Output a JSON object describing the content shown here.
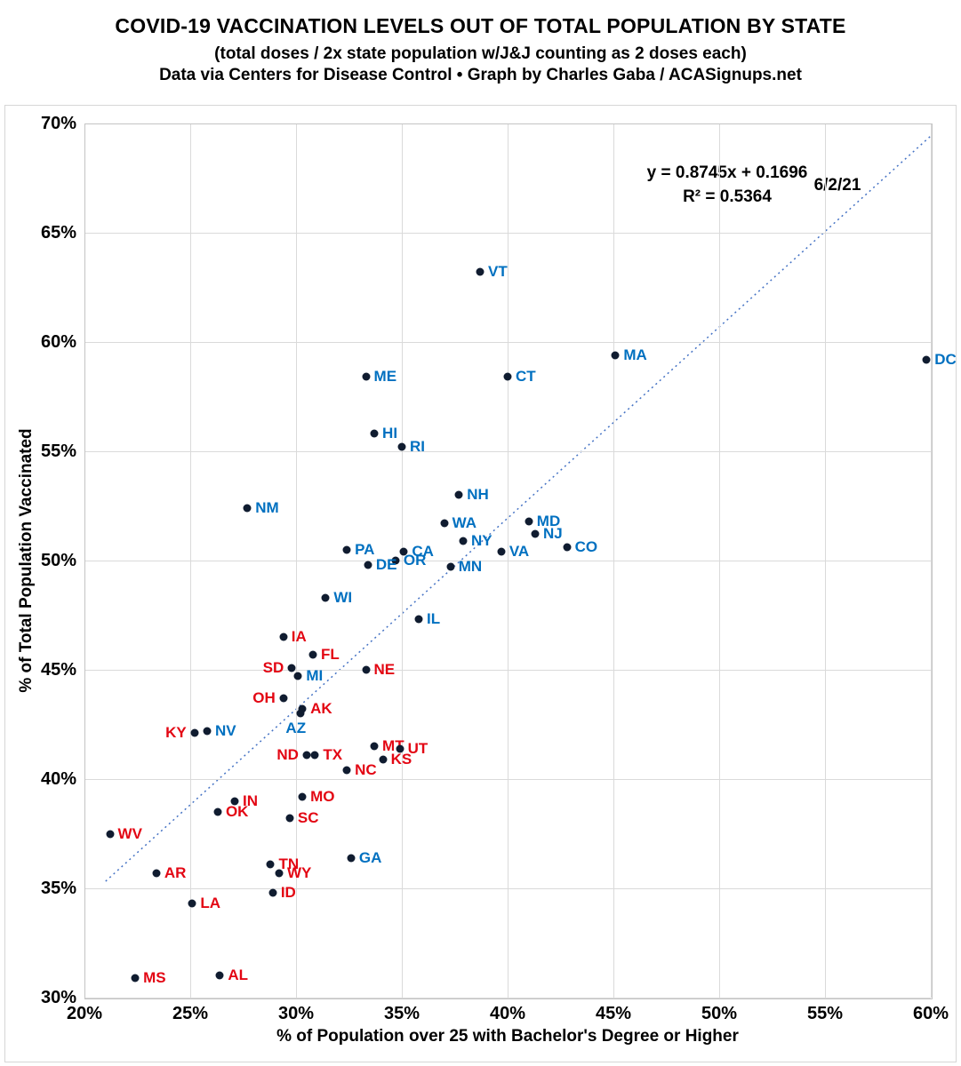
{
  "header": {
    "title": "COVID-19 VACCINATION LEVELS OUT OF TOTAL POPULATION BY STATE",
    "subtitle": "(total doses / 2x state population w/J&J counting as 2 doses each)",
    "attribution": "Data via Centers for Disease Control • Graph by Charles Gaba / ACASignups.net"
  },
  "chart_data": {
    "type": "scatter",
    "xlabel": "% of Population over 25 with Bachelor's Degree or Higher",
    "ylabel": "% of Total Population Vaccinated",
    "xlim": [
      20,
      60
    ],
    "ylim": [
      30,
      70
    ],
    "x_ticks": [
      20,
      25,
      30,
      35,
      40,
      45,
      50,
      55,
      60
    ],
    "x_tick_labels": [
      "20%",
      "25%",
      "30%",
      "35%",
      "40%",
      "45%",
      "50%",
      "55%",
      "60%"
    ],
    "y_ticks": [
      30,
      35,
      40,
      45,
      50,
      55,
      60,
      65,
      70
    ],
    "y_tick_labels": [
      "30%",
      "35%",
      "40%",
      "45%",
      "50%",
      "55%",
      "60%",
      "65%",
      "70%"
    ],
    "grid": true,
    "legend": "none",
    "annotation": {
      "equation": "y = 0.8745x + 0.1696",
      "r_squared": "R² = 0.5364",
      "date": "6/2/21"
    },
    "trendline": {
      "slope": 0.8745,
      "intercept": 0.1696,
      "x_start": 21,
      "x_end": 60,
      "style": "dotted"
    },
    "colors": {
      "dot": "#101c30",
      "blue_label": "#0070c0",
      "red_label": "#e30613",
      "trend": "#4472c4"
    },
    "points": [
      {
        "state": "VT",
        "x": 38.7,
        "y": 63.2,
        "color": "blue",
        "side": "right"
      },
      {
        "state": "MA",
        "x": 45.1,
        "y": 59.4,
        "color": "blue",
        "side": "right"
      },
      {
        "state": "DC",
        "x": 59.8,
        "y": 59.2,
        "color": "blue",
        "side": "right"
      },
      {
        "state": "ME",
        "x": 33.3,
        "y": 58.4,
        "color": "blue",
        "side": "right"
      },
      {
        "state": "CT",
        "x": 40.0,
        "y": 58.4,
        "color": "blue",
        "side": "right"
      },
      {
        "state": "HI",
        "x": 33.7,
        "y": 55.8,
        "color": "blue",
        "side": "right"
      },
      {
        "state": "RI",
        "x": 35.0,
        "y": 55.2,
        "color": "blue",
        "side": "right"
      },
      {
        "state": "NH",
        "x": 37.7,
        "y": 53.0,
        "color": "blue",
        "side": "right"
      },
      {
        "state": "NM",
        "x": 27.7,
        "y": 52.4,
        "color": "blue",
        "side": "right"
      },
      {
        "state": "WA",
        "x": 37.0,
        "y": 51.7,
        "color": "blue",
        "side": "right"
      },
      {
        "state": "MD",
        "x": 41.0,
        "y": 51.8,
        "color": "blue",
        "side": "right"
      },
      {
        "state": "NY",
        "x": 37.9,
        "y": 50.9,
        "color": "blue",
        "side": "right"
      },
      {
        "state": "NJ",
        "x": 41.3,
        "y": 51.2,
        "color": "blue",
        "side": "right"
      },
      {
        "state": "PA",
        "x": 32.4,
        "y": 50.5,
        "color": "blue",
        "side": "right"
      },
      {
        "state": "CA",
        "x": 35.1,
        "y": 50.4,
        "color": "blue",
        "side": "right"
      },
      {
        "state": "VA",
        "x": 39.7,
        "y": 50.4,
        "color": "blue",
        "side": "right"
      },
      {
        "state": "CO",
        "x": 42.8,
        "y": 50.6,
        "color": "blue",
        "side": "right"
      },
      {
        "state": "OR",
        "x": 34.7,
        "y": 50.0,
        "color": "blue",
        "side": "right"
      },
      {
        "state": "DE",
        "x": 33.4,
        "y": 49.8,
        "color": "blue",
        "side": "right"
      },
      {
        "state": "MN",
        "x": 37.3,
        "y": 49.7,
        "color": "blue",
        "side": "right"
      },
      {
        "state": "WI",
        "x": 31.4,
        "y": 48.3,
        "color": "blue",
        "side": "right"
      },
      {
        "state": "IL",
        "x": 35.8,
        "y": 47.3,
        "color": "blue",
        "side": "right"
      },
      {
        "state": "IA",
        "x": 29.4,
        "y": 46.5,
        "color": "red",
        "side": "right"
      },
      {
        "state": "FL",
        "x": 30.8,
        "y": 45.7,
        "color": "red",
        "side": "right"
      },
      {
        "state": "SD",
        "x": 29.8,
        "y": 45.1,
        "color": "red",
        "side": "left"
      },
      {
        "state": "MI",
        "x": 30.1,
        "y": 44.7,
        "color": "blue",
        "side": "right"
      },
      {
        "state": "NE",
        "x": 33.3,
        "y": 45.0,
        "color": "red",
        "side": "right"
      },
      {
        "state": "OH",
        "x": 29.4,
        "y": 43.7,
        "color": "red",
        "side": "left"
      },
      {
        "state": "AK",
        "x": 30.3,
        "y": 43.2,
        "color": "red",
        "side": "right"
      },
      {
        "state": "AZ",
        "x": 30.2,
        "y": 43.0,
        "color": "blue",
        "side": "below"
      },
      {
        "state": "KY",
        "x": 25.2,
        "y": 42.1,
        "color": "red",
        "side": "left"
      },
      {
        "state": "NV",
        "x": 25.8,
        "y": 42.2,
        "color": "blue",
        "side": "right"
      },
      {
        "state": "ND",
        "x": 30.5,
        "y": 41.1,
        "color": "red",
        "side": "left"
      },
      {
        "state": "TX",
        "x": 30.9,
        "y": 41.1,
        "color": "red",
        "side": "right"
      },
      {
        "state": "MT",
        "x": 33.7,
        "y": 41.5,
        "color": "red",
        "side": "right"
      },
      {
        "state": "UT",
        "x": 34.9,
        "y": 41.4,
        "color": "red",
        "side": "right"
      },
      {
        "state": "KS",
        "x": 34.1,
        "y": 40.9,
        "color": "red",
        "side": "right"
      },
      {
        "state": "NC",
        "x": 32.4,
        "y": 40.4,
        "color": "red",
        "side": "right"
      },
      {
        "state": "MO",
        "x": 30.3,
        "y": 39.2,
        "color": "red",
        "side": "right"
      },
      {
        "state": "IN",
        "x": 27.1,
        "y": 39.0,
        "color": "red",
        "side": "right"
      },
      {
        "state": "OK",
        "x": 26.3,
        "y": 38.5,
        "color": "red",
        "side": "right"
      },
      {
        "state": "SC",
        "x": 29.7,
        "y": 38.2,
        "color": "red",
        "side": "right"
      },
      {
        "state": "WV",
        "x": 21.2,
        "y": 37.5,
        "color": "red",
        "side": "right"
      },
      {
        "state": "GA",
        "x": 32.6,
        "y": 36.4,
        "color": "blue",
        "side": "right"
      },
      {
        "state": "TN",
        "x": 28.8,
        "y": 36.1,
        "color": "red",
        "side": "right"
      },
      {
        "state": "WY",
        "x": 29.2,
        "y": 35.7,
        "color": "red",
        "side": "right"
      },
      {
        "state": "ID",
        "x": 28.9,
        "y": 34.8,
        "color": "red",
        "side": "right"
      },
      {
        "state": "AR",
        "x": 23.4,
        "y": 35.7,
        "color": "red",
        "side": "right"
      },
      {
        "state": "LA",
        "x": 25.1,
        "y": 34.3,
        "color": "red",
        "side": "right"
      },
      {
        "state": "MS",
        "x": 22.4,
        "y": 30.9,
        "color": "red",
        "side": "right"
      },
      {
        "state": "AL",
        "x": 26.4,
        "y": 31.0,
        "color": "red",
        "side": "right"
      }
    ]
  }
}
